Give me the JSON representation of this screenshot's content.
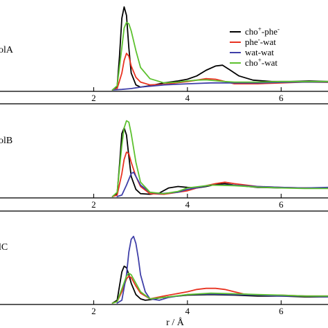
{
  "chart_data": {
    "type": "line",
    "xlabel": "r / Å",
    "xlim": [
      0.0,
      7.0
    ],
    "xticks": [
      2,
      4,
      6
    ],
    "xtick_labels": [
      "2",
      "4",
      "6"
    ],
    "legend": {
      "placement": "top-right",
      "entries": [
        {
          "key": "cho_phe",
          "base": "cho",
          "sup1": "+",
          "mid": "-phe",
          "sup2": "-",
          "tail": "",
          "color": "#000000"
        },
        {
          "key": "phe_wat",
          "base": "phe",
          "sup1": "-",
          "mid": "-wat",
          "sup2": "",
          "tail": "",
          "color": "#e8311f"
        },
        {
          "key": "wat_wat",
          "base": "wat-wat",
          "sup1": "",
          "mid": "",
          "sup2": "",
          "tail": "",
          "color": "#3f3fa8"
        },
        {
          "key": "cho_wat",
          "base": "cho",
          "sup1": "+",
          "mid": "-wat",
          "sup2": "",
          "tail": "",
          "color": "#5cc12e"
        }
      ]
    },
    "panels": [
      {
        "label": "olA",
        "ylim": [
          0,
          3.0
        ],
        "series": [
          {
            "key": "cho_phe",
            "x": [
              2.4,
              2.5,
              2.55,
              2.6,
              2.65,
              2.7,
              2.75,
              2.8,
              2.9,
              3.0,
              3.2,
              3.5,
              3.8,
              4.0,
              4.2,
              4.4,
              4.6,
              4.75,
              4.9,
              5.1,
              5.4,
              5.8,
              6.2,
              6.6,
              7.0
            ],
            "y": [
              0,
              0.12,
              1.2,
              2.55,
              2.95,
              2.65,
              1.5,
              0.6,
              0.18,
              0.1,
              0.15,
              0.25,
              0.32,
              0.38,
              0.5,
              0.7,
              0.85,
              0.88,
              0.72,
              0.5,
              0.35,
              0.3,
              0.3,
              0.32,
              0.3
            ]
          },
          {
            "key": "phe_wat",
            "x": [
              2.4,
              2.5,
              2.6,
              2.65,
              2.7,
              2.75,
              2.8,
              2.9,
              3.0,
              3.2,
              3.5,
              4.0,
              4.2,
              4.4,
              4.6,
              4.8,
              5.0,
              5.5,
              6.0,
              6.5,
              7.0
            ],
            "y": [
              0,
              0.05,
              0.6,
              1.05,
              1.3,
              1.2,
              0.85,
              0.45,
              0.28,
              0.18,
              0.2,
              0.3,
              0.35,
              0.4,
              0.38,
              0.3,
              0.22,
              0.22,
              0.25,
              0.28,
              0.27
            ]
          },
          {
            "key": "wat_wat",
            "x": [
              2.4,
              2.6,
              2.8,
              3.0,
              3.5,
              4.0,
              4.5,
              5.0,
              5.5,
              6.0,
              6.5,
              7.0
            ],
            "y": [
              0,
              0.02,
              0.05,
              0.1,
              0.18,
              0.22,
              0.25,
              0.25,
              0.25,
              0.27,
              0.28,
              0.28
            ]
          },
          {
            "key": "cho_wat",
            "x": [
              2.4,
              2.5,
              2.6,
              2.65,
              2.7,
              2.75,
              2.8,
              2.9,
              3.0,
              3.2,
              3.5,
              3.8,
              4.0,
              4.2,
              4.4,
              4.6,
              4.8,
              5.0,
              5.5,
              6.0,
              6.5,
              7.0
            ],
            "y": [
              0,
              0.15,
              1.5,
              2.2,
              2.4,
              2.35,
              2.1,
              1.4,
              0.8,
              0.4,
              0.25,
              0.28,
              0.32,
              0.35,
              0.36,
              0.33,
              0.3,
              0.28,
              0.28,
              0.3,
              0.3,
              0.3
            ]
          }
        ]
      },
      {
        "label": "olB",
        "ylim": [
          0,
          3.0
        ],
        "series": [
          {
            "key": "cho_phe",
            "x": [
              2.4,
              2.5,
              2.55,
              2.6,
              2.65,
              2.7,
              2.75,
              2.8,
              2.9,
              3.0,
              3.2,
              3.4,
              3.6,
              3.8,
              4.0,
              4.2,
              4.4,
              4.6,
              4.8,
              5.0,
              5.5,
              6.0,
              6.5,
              7.0
            ],
            "y": [
              0,
              0.1,
              1.1,
              2.2,
              2.4,
              2.15,
              1.4,
              0.7,
              0.25,
              0.1,
              0.08,
              0.12,
              0.3,
              0.35,
              0.32,
              0.3,
              0.35,
              0.42,
              0.45,
              0.4,
              0.32,
              0.3,
              0.3,
              0.3
            ]
          },
          {
            "key": "phe_wat",
            "x": [
              2.4,
              2.5,
              2.6,
              2.65,
              2.7,
              2.75,
              2.8,
              2.9,
              3.0,
              3.2,
              3.5,
              4.0,
              4.2,
              4.4,
              4.6,
              4.8,
              5.0,
              5.5,
              6.0,
              6.5,
              7.0
            ],
            "y": [
              0,
              0.05,
              0.8,
              1.3,
              1.55,
              1.5,
              1.2,
              0.7,
              0.35,
              0.1,
              0.08,
              0.2,
              0.3,
              0.38,
              0.45,
              0.5,
              0.45,
              0.35,
              0.32,
              0.3,
              0.3
            ]
          },
          {
            "key": "wat_wat",
            "x": [
              2.5,
              2.6,
              2.7,
              2.8,
              2.85,
              2.9,
              3.0,
              3.2,
              3.4,
              3.8,
              4.0,
              4.5,
              5.0,
              5.5,
              6.0,
              6.5,
              7.0
            ],
            "y": [
              0,
              0.05,
              0.4,
              0.8,
              0.85,
              0.7,
              0.4,
              0.15,
              0.1,
              0.15,
              0.25,
              0.4,
              0.4,
              0.35,
              0.32,
              0.3,
              0.32
            ]
          },
          {
            "key": "cho_wat",
            "x": [
              2.4,
              2.5,
              2.6,
              2.65,
              2.7,
              2.75,
              2.8,
              2.9,
              3.0,
              3.2,
              3.5,
              3.8,
              4.0,
              4.5,
              5.0,
              5.5,
              6.0,
              6.5,
              7.0
            ],
            "y": [
              0,
              0.15,
              1.8,
              2.4,
              2.65,
              2.6,
              2.2,
              1.2,
              0.5,
              0.15,
              0.1,
              0.18,
              0.3,
              0.4,
              0.38,
              0.33,
              0.3,
              0.28,
              0.28
            ]
          }
        ]
      },
      {
        "label": "lC",
        "ylim": [
          0,
          3.0
        ],
        "series": [
          {
            "key": "cho_phe",
            "x": [
              2.4,
              2.5,
              2.55,
              2.6,
              2.65,
              2.7,
              2.75,
              2.8,
              2.9,
              3.0,
              3.1,
              3.2,
              3.4,
              3.6,
              3.8,
              4.0,
              4.5,
              5.0,
              5.5,
              6.0,
              6.5,
              7.0
            ],
            "y": [
              0,
              0.1,
              0.6,
              1.1,
              1.3,
              1.25,
              1.0,
              0.7,
              0.3,
              0.15,
              0.1,
              0.12,
              0.18,
              0.22,
              0.25,
              0.28,
              0.3,
              0.28,
              0.25,
              0.25,
              0.22,
              0.22
            ]
          },
          {
            "key": "phe_wat",
            "x": [
              2.4,
              2.5,
              2.6,
              2.7,
              2.75,
              2.8,
              2.9,
              3.0,
              3.2,
              3.5,
              4.0,
              4.2,
              4.4,
              4.6,
              4.8,
              5.0,
              5.2,
              5.5,
              6.0,
              6.5,
              7.0
            ],
            "y": [
              0,
              0.05,
              0.4,
              0.85,
              0.95,
              0.9,
              0.6,
              0.35,
              0.15,
              0.25,
              0.4,
              0.48,
              0.52,
              0.52,
              0.48,
              0.4,
              0.32,
              0.28,
              0.28,
              0.25,
              0.25
            ]
          },
          {
            "key": "wat_wat",
            "x": [
              2.5,
              2.6,
              2.7,
              2.75,
              2.8,
              2.85,
              2.9,
              2.95,
              3.0,
              3.1,
              3.2,
              3.4,
              3.6,
              4.0,
              4.5,
              5.0,
              5.5,
              6.0,
              6.5,
              7.0
            ],
            "y": [
              0,
              0.1,
              1.0,
              1.8,
              2.25,
              2.35,
              2.1,
              1.6,
              1.0,
              0.4,
              0.15,
              0.1,
              0.2,
              0.3,
              0.32,
              0.3,
              0.28,
              0.25,
              0.25,
              0.22
            ]
          },
          {
            "key": "cho_wat",
            "x": [
              2.4,
              2.5,
              2.6,
              2.7,
              2.75,
              2.8,
              2.9,
              3.0,
              3.2,
              3.5,
              4.0,
              4.5,
              5.0,
              5.5,
              6.0,
              6.5,
              7.0
            ],
            "y": [
              0,
              0.05,
              0.5,
              0.95,
              1.05,
              1.0,
              0.7,
              0.4,
              0.15,
              0.2,
              0.3,
              0.35,
              0.33,
              0.3,
              0.28,
              0.25,
              0.25
            ]
          }
        ]
      }
    ]
  }
}
